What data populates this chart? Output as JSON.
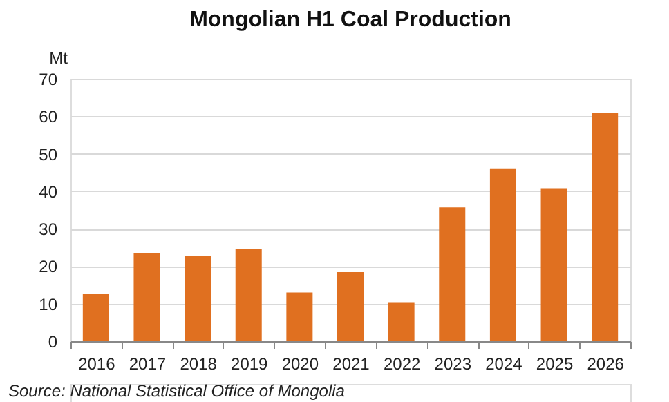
{
  "chart_data": {
    "type": "bar",
    "title": "Mongolian H1 Coal Production",
    "ylabel": "Mt",
    "categories": [
      "2016",
      "2017",
      "2018",
      "2019",
      "2020",
      "2021",
      "2022",
      "2023",
      "2024",
      "2025",
      "2026"
    ],
    "values": [
      12.6,
      23.4,
      22.7,
      24.5,
      13.0,
      18.4,
      10.4,
      35.7,
      46.1,
      40.8,
      60.9
    ],
    "color": "#e07020",
    "ylim": [
      0,
      70
    ],
    "yticks": [
      0,
      10,
      20,
      30,
      40,
      50,
      60,
      70
    ],
    "grid": "y",
    "annotations": [
      "Source: National Statistical Office of Mongolia"
    ]
  }
}
